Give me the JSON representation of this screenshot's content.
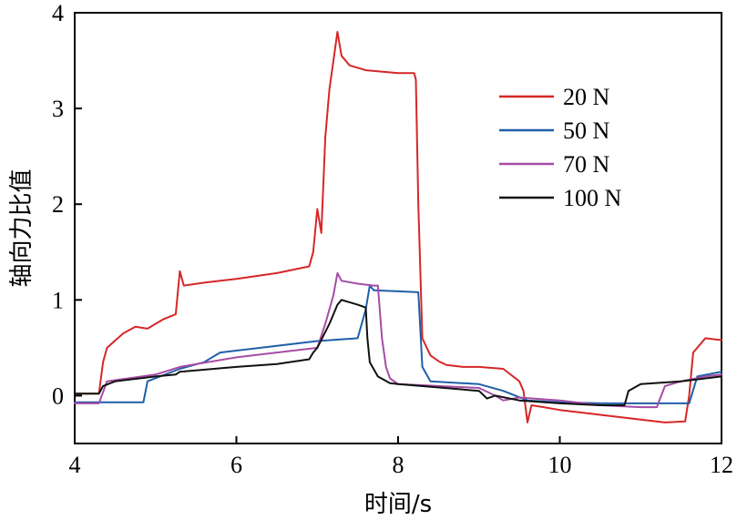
{
  "chart_data": {
    "type": "line",
    "title": "",
    "xlabel": "时间/s",
    "ylabel": "轴向力比值",
    "xlim": [
      4,
      12
    ],
    "ylim": [
      -0.5,
      4
    ],
    "xticks": [
      4,
      6,
      8,
      10,
      12
    ],
    "yticks": [
      0,
      1,
      2,
      3,
      4
    ],
    "xtick_labels": [
      "4",
      "6",
      "8",
      "10",
      "12"
    ],
    "ytick_labels": [
      "0",
      "1",
      "2",
      "3",
      "4"
    ],
    "grid": false,
    "legend_position": "top-right",
    "series": [
      {
        "name": "20 N",
        "color": "#d62728",
        "x": [
          4.0,
          4.3,
          4.35,
          4.4,
          4.6,
          4.75,
          4.9,
          5.1,
          5.25,
          5.3,
          5.35,
          5.6,
          6.0,
          6.5,
          6.9,
          6.95,
          7.0,
          7.05,
          7.1,
          7.15,
          7.2,
          7.25,
          7.3,
          7.4,
          7.6,
          8.0,
          8.2,
          8.22,
          8.25,
          8.3,
          8.4,
          8.5,
          8.6,
          8.8,
          9.0,
          9.3,
          9.5,
          9.55,
          9.6,
          9.65,
          9.8,
          10.0,
          10.5,
          11.0,
          11.3,
          11.55,
          11.6,
          11.65,
          11.8,
          12.0
        ],
        "y": [
          0.02,
          0.02,
          0.35,
          0.5,
          0.65,
          0.72,
          0.7,
          0.8,
          0.85,
          1.3,
          1.15,
          1.18,
          1.22,
          1.28,
          1.35,
          1.5,
          1.95,
          1.7,
          2.7,
          3.2,
          3.5,
          3.8,
          3.55,
          3.45,
          3.4,
          3.37,
          3.37,
          3.3,
          2.0,
          0.6,
          0.42,
          0.36,
          0.32,
          0.3,
          0.3,
          0.28,
          0.15,
          0.05,
          -0.28,
          -0.1,
          -0.12,
          -0.15,
          -0.2,
          -0.25,
          -0.28,
          -0.27,
          0.0,
          0.45,
          0.6,
          0.58
        ]
      },
      {
        "name": "50 N",
        "color": "#1f5fa8",
        "x": [
          4.0,
          4.5,
          4.85,
          4.9,
          5.3,
          5.6,
          5.8,
          6.5,
          7.0,
          7.5,
          7.6,
          7.65,
          7.7,
          8.0,
          8.25,
          8.3,
          8.4,
          9.0,
          9.3,
          9.6,
          10.0,
          10.5,
          11.0,
          11.5,
          11.6,
          11.7,
          12.0
        ],
        "y": [
          -0.07,
          -0.07,
          -0.07,
          0.15,
          0.28,
          0.35,
          0.45,
          0.52,
          0.57,
          0.6,
          0.9,
          1.15,
          1.1,
          1.09,
          1.08,
          0.3,
          0.15,
          0.12,
          0.05,
          -0.05,
          -0.07,
          -0.08,
          -0.08,
          -0.08,
          -0.08,
          0.2,
          0.25
        ]
      },
      {
        "name": "70 N",
        "color": "#a64ca6",
        "x": [
          4.0,
          4.3,
          4.4,
          5.0,
          5.3,
          6.0,
          6.5,
          7.0,
          7.1,
          7.2,
          7.25,
          7.3,
          7.5,
          7.7,
          7.75,
          7.8,
          7.85,
          7.9,
          8.0,
          8.5,
          9.0,
          9.2,
          9.3,
          9.5,
          10.0,
          10.5,
          11.0,
          11.2,
          11.3,
          11.5,
          11.8,
          12.0
        ],
        "y": [
          -0.08,
          -0.08,
          0.15,
          0.22,
          0.3,
          0.4,
          0.45,
          0.5,
          0.75,
          1.05,
          1.28,
          1.2,
          1.17,
          1.15,
          1.15,
          0.6,
          0.3,
          0.18,
          0.12,
          0.1,
          0.08,
          0.0,
          -0.05,
          -0.02,
          -0.05,
          -0.1,
          -0.12,
          -0.12,
          0.1,
          0.15,
          0.2,
          0.22
        ]
      },
      {
        "name": "100 N",
        "color": "#111111",
        "x": [
          4.0,
          4.3,
          4.35,
          4.5,
          5.0,
          5.25,
          5.3,
          6.0,
          6.5,
          6.9,
          6.95,
          7.0,
          7.15,
          7.25,
          7.3,
          7.5,
          7.6,
          7.62,
          7.65,
          7.75,
          7.9,
          8.0,
          9.0,
          9.1,
          9.2,
          9.5,
          10.0,
          10.5,
          10.8,
          10.85,
          11.0,
          11.5,
          12.0
        ],
        "y": [
          0.02,
          0.02,
          0.1,
          0.15,
          0.2,
          0.22,
          0.25,
          0.3,
          0.33,
          0.38,
          0.45,
          0.5,
          0.75,
          0.95,
          1.0,
          0.95,
          0.92,
          0.6,
          0.35,
          0.2,
          0.13,
          0.12,
          0.05,
          -0.03,
          0.0,
          -0.05,
          -0.08,
          -0.1,
          -0.1,
          0.05,
          0.12,
          0.15,
          0.2
        ]
      }
    ]
  }
}
